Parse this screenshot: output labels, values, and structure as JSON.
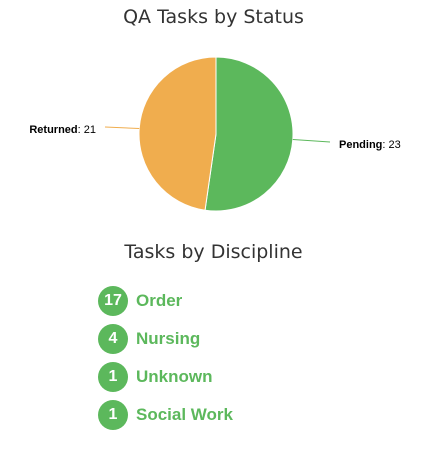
{
  "chart_data": [
    {
      "type": "pie",
      "title": "QA Tasks by Status",
      "slices": [
        {
          "label": "Pending",
          "value": 23,
          "color": "#5cb85c"
        },
        {
          "label": "Returned",
          "value": 21,
          "color": "#f0ad4e"
        }
      ]
    },
    {
      "type": "table",
      "title": "Tasks by Discipline",
      "rows": [
        {
          "count": "17",
          "label": "Order"
        },
        {
          "count": "4",
          "label": "Nursing"
        },
        {
          "count": "1",
          "label": "Unknown"
        },
        {
          "count": "1",
          "label": "Social Work"
        }
      ]
    }
  ]
}
